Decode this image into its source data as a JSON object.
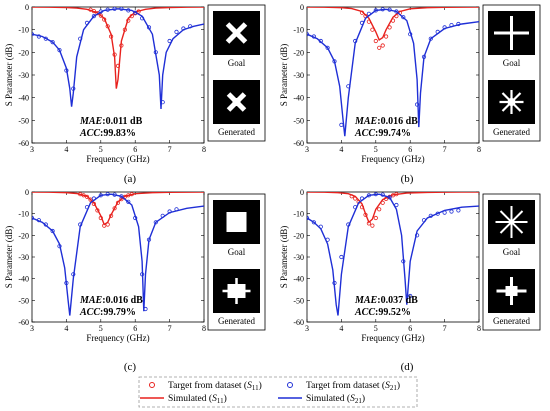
{
  "chart_data": [
    {
      "type": "line",
      "panel": "(a)",
      "xlabel": "Frequency (GHz)",
      "ylabel": "S Parameter (dB)",
      "xlim": [
        3,
        8
      ],
      "ylim": [
        -60,
        0
      ],
      "xticks": [
        3,
        4,
        5,
        6,
        7,
        8
      ],
      "yticks": [
        0,
        -10,
        -20,
        -30,
        -40,
        -50,
        -60
      ],
      "metrics": {
        "mae_label": "MAE",
        "mae_value": ":0.011 dB",
        "acc_label": "ACC",
        "acc_value": ":99.83%"
      },
      "thumbs": {
        "goal": "Goal",
        "generated": "Generated",
        "goal_shape": "x-cross",
        "generated_shape": "x-cross-rough"
      },
      "series": [
        {
          "name": "Simulated (S11)",
          "color": "#e8211d",
          "kind": "line",
          "x": [
            3.0,
            3.5,
            4.0,
            4.3,
            4.6,
            4.9,
            5.1,
            5.3,
            5.4,
            5.45,
            5.5,
            5.6,
            5.8,
            6.0,
            6.3,
            6.6,
            7.0,
            7.5,
            8.0
          ],
          "y": [
            -0.05,
            -0.1,
            -0.25,
            -0.5,
            -1.0,
            -2.5,
            -5.0,
            -12.0,
            -22.0,
            -36.0,
            -32.0,
            -15.0,
            -5.0,
            -2.2,
            -1.0,
            -0.5,
            -0.25,
            -0.1,
            -0.05
          ]
        },
        {
          "name": "Target from dataset (S11)",
          "color": "#e8211d",
          "kind": "marker",
          "x": [
            4.7,
            4.8,
            4.9,
            5.0,
            5.1,
            5.2,
            5.3,
            5.4,
            5.5,
            5.6,
            5.7,
            5.8,
            5.9,
            6.0,
            6.1
          ],
          "y": [
            -1.2,
            -1.8,
            -2.7,
            -3.8,
            -5.5,
            -8.5,
            -13.0,
            -21.0,
            -26.0,
            -17.0,
            -10.0,
            -6.0,
            -4.0,
            -2.8,
            -2.0
          ]
        },
        {
          "name": "Simulated (S21)",
          "color": "#1f2fd6",
          "kind": "line",
          "x": [
            3.0,
            3.3,
            3.6,
            3.8,
            4.0,
            4.1,
            4.15,
            4.2,
            4.3,
            4.5,
            4.8,
            5.1,
            5.5,
            5.9,
            6.2,
            6.5,
            6.7,
            6.75,
            6.8,
            6.9,
            7.1,
            7.4,
            7.7,
            8.0
          ],
          "y": [
            -12.0,
            -13.0,
            -15.5,
            -19.0,
            -27.0,
            -36.0,
            -44.0,
            -38.0,
            -22.0,
            -10.0,
            -4.0,
            -1.5,
            -0.8,
            -1.5,
            -4.0,
            -12.0,
            -30.0,
            -45.0,
            -30.0,
            -20.0,
            -14.0,
            -10.0,
            -8.5,
            -7.5
          ]
        },
        {
          "name": "Target from dataset (S21)",
          "color": "#1f2fd6",
          "kind": "marker",
          "x": [
            3.0,
            3.2,
            3.4,
            3.6,
            3.8,
            4.0,
            4.2,
            4.4,
            4.6,
            4.8,
            5.0,
            5.2,
            5.4,
            5.6,
            5.8,
            6.0,
            6.2,
            6.4,
            6.6,
            6.8,
            7.0,
            7.2,
            7.4,
            7.6
          ],
          "y": [
            -12.0,
            -13.0,
            -14.0,
            -15.5,
            -19.0,
            -28.0,
            -36.0,
            -14.0,
            -7.0,
            -4.0,
            -2.0,
            -1.2,
            -0.8,
            -0.8,
            -1.5,
            -2.5,
            -5.0,
            -9.0,
            -20.0,
            -42.0,
            -15.0,
            -11.0,
            -9.5,
            -8.5
          ]
        }
      ]
    },
    {
      "type": "line",
      "panel": "(b)",
      "xlabel": "Frequency (GHz)",
      "ylabel": "S Parameter (dB)",
      "xlim": [
        3,
        8
      ],
      "ylim": [
        -60,
        0
      ],
      "xticks": [
        3,
        4,
        5,
        6,
        7,
        8
      ],
      "yticks": [
        0,
        -10,
        -20,
        -30,
        -40,
        -50,
        -60
      ],
      "metrics": {
        "mae_label": "MAE",
        "mae_value": ":0.016 dB",
        "acc_label": "ACC",
        "acc_value": ":99.74%"
      },
      "thumbs": {
        "goal": "Goal",
        "generated": "Generated",
        "goal_shape": "plus",
        "generated_shape": "star"
      },
      "series": [
        {
          "name": "Simulated (S11)",
          "color": "#e8211d",
          "kind": "line",
          "x": [
            3.0,
            3.5,
            4.0,
            4.3,
            4.6,
            4.8,
            5.0,
            5.1,
            5.2,
            5.3,
            5.5,
            5.7,
            6.0,
            6.5,
            7.0,
            7.5,
            8.0
          ],
          "y": [
            -0.05,
            -0.1,
            -0.3,
            -0.7,
            -2.0,
            -5.0,
            -11.0,
            -14.5,
            -13.5,
            -10.0,
            -4.5,
            -2.0,
            -0.8,
            -0.3,
            -0.15,
            -0.08,
            -0.05
          ]
        },
        {
          "name": "Target from dataset (S11)",
          "color": "#e8211d",
          "kind": "marker",
          "x": [
            4.6,
            4.7,
            4.8,
            4.9,
            5.0,
            5.1,
            5.2,
            5.3,
            5.4,
            5.5,
            5.6,
            5.7
          ],
          "y": [
            -2.5,
            -4.0,
            -6.5,
            -10.0,
            -15.0,
            -18.0,
            -17.0,
            -13.0,
            -9.0,
            -6.0,
            -4.0,
            -2.5
          ]
        },
        {
          "name": "Simulated (S21)",
          "color": "#1f2fd6",
          "kind": "line",
          "x": [
            3.0,
            3.3,
            3.6,
            3.8,
            3.95,
            4.05,
            4.1,
            4.2,
            4.4,
            4.7,
            5.0,
            5.3,
            5.6,
            5.9,
            6.1,
            6.2,
            6.25,
            6.3,
            6.4,
            6.6,
            7.0,
            7.5,
            8.0
          ],
          "y": [
            -12.0,
            -14.0,
            -18.0,
            -24.0,
            -35.0,
            -50.0,
            -57.0,
            -40.0,
            -16.0,
            -5.0,
            -1.5,
            -1.0,
            -2.0,
            -6.0,
            -16.0,
            -32.0,
            -53.0,
            -38.0,
            -22.0,
            -14.0,
            -9.5,
            -7.5,
            -6.5
          ]
        },
        {
          "name": "Target from dataset (S21)",
          "color": "#1f2fd6",
          "kind": "marker",
          "x": [
            3.0,
            3.2,
            3.4,
            3.6,
            3.8,
            4.0,
            4.2,
            4.4,
            4.6,
            4.8,
            5.0,
            5.2,
            5.4,
            5.6,
            5.8,
            6.0,
            6.2,
            6.4,
            6.6,
            6.8,
            7.0,
            7.2,
            7.4
          ],
          "y": [
            -12.0,
            -13.0,
            -15.0,
            -18.0,
            -24.0,
            -52.0,
            -35.0,
            -15.0,
            -7.0,
            -3.0,
            -1.5,
            -1.0,
            -1.2,
            -2.0,
            -4.5,
            -12.0,
            -43.0,
            -22.0,
            -14.0,
            -11.0,
            -9.0,
            -8.0,
            -7.5
          ]
        }
      ]
    },
    {
      "type": "line",
      "panel": "(c)",
      "xlabel": "Frequency (GHz)",
      "ylabel": "S Parameter (dB)",
      "xlim": [
        3,
        8
      ],
      "ylim": [
        -60,
        0
      ],
      "xticks": [
        3,
        4,
        5,
        6,
        7,
        8
      ],
      "yticks": [
        0,
        -10,
        -20,
        -30,
        -40,
        -50,
        -60
      ],
      "metrics": {
        "mae_label": "MAE",
        "mae_value": ":0.016 dB",
        "acc_label": "ACC",
        "acc_value": ":99.79%"
      },
      "thumbs": {
        "goal": "Goal",
        "generated": "Generated",
        "goal_shape": "square",
        "generated_shape": "square-rough"
      },
      "series": [
        {
          "name": "Simulated (S11)",
          "color": "#e8211d",
          "kind": "line",
          "x": [
            3.0,
            3.5,
            4.0,
            4.3,
            4.6,
            4.8,
            5.0,
            5.1,
            5.2,
            5.3,
            5.5,
            5.7,
            6.0,
            6.5,
            7.0,
            7.5,
            8.0
          ],
          "y": [
            -0.05,
            -0.1,
            -0.3,
            -0.7,
            -2.0,
            -5.0,
            -11.0,
            -15.0,
            -14.0,
            -10.5,
            -4.5,
            -2.0,
            -0.8,
            -0.3,
            -0.15,
            -0.08,
            -0.05
          ]
        },
        {
          "name": "Target from dataset (S11)",
          "color": "#e8211d",
          "kind": "marker",
          "x": [
            4.4,
            4.5,
            4.6,
            4.7,
            4.8,
            4.9,
            5.0,
            5.1,
            5.2,
            5.3,
            5.4,
            5.5,
            5.6,
            5.7,
            5.8,
            5.9
          ],
          "y": [
            -1.0,
            -1.5,
            -2.2,
            -3.5,
            -5.5,
            -8.5,
            -12.0,
            -15.5,
            -15.0,
            -11.0,
            -7.5,
            -5.0,
            -3.3,
            -2.2,
            -1.5,
            -1.0
          ]
        },
        {
          "name": "Simulated (S21)",
          "color": "#1f2fd6",
          "kind": "line",
          "x": [
            3.0,
            3.3,
            3.6,
            3.8,
            3.95,
            4.05,
            4.1,
            4.2,
            4.4,
            4.7,
            5.0,
            5.3,
            5.6,
            5.9,
            6.1,
            6.2,
            6.25,
            6.3,
            6.4,
            6.6,
            7.0,
            7.5,
            8.0
          ],
          "y": [
            -12.0,
            -14.0,
            -18.0,
            -24.0,
            -35.0,
            -50.0,
            -57.0,
            -40.0,
            -16.0,
            -5.0,
            -1.5,
            -1.0,
            -2.0,
            -6.0,
            -16.0,
            -32.0,
            -55.0,
            -38.0,
            -22.0,
            -14.0,
            -9.5,
            -7.5,
            -6.5
          ]
        },
        {
          "name": "Target from dataset (S21)",
          "color": "#1f2fd6",
          "kind": "marker",
          "x": [
            3.0,
            3.2,
            3.4,
            3.6,
            3.8,
            4.0,
            4.2,
            4.4,
            4.6,
            4.8,
            5.0,
            5.2,
            5.4,
            5.6,
            5.8,
            6.0,
            6.2,
            6.3,
            6.4,
            6.6,
            6.8,
            7.0,
            7.2
          ],
          "y": [
            -12.0,
            -13.0,
            -15.0,
            -18.0,
            -25.0,
            -42.0,
            -38.0,
            -15.0,
            -7.0,
            -3.0,
            -1.5,
            -1.0,
            -1.2,
            -2.0,
            -4.5,
            -12.0,
            -38.0,
            -54.0,
            -22.0,
            -14.0,
            -11.0,
            -9.0,
            -8.0
          ]
        }
      ]
    },
    {
      "type": "line",
      "panel": "(d)",
      "xlabel": "Frequency (GHz)",
      "ylabel": "S Parameter (dB)",
      "xlim": [
        3,
        8
      ],
      "ylim": [
        -60,
        0
      ],
      "xticks": [
        3,
        4,
        5,
        6,
        7,
        8
      ],
      "yticks": [
        0,
        -10,
        -20,
        -30,
        -40,
        -50,
        -60
      ],
      "metrics": {
        "mae_label": "MAE",
        "mae_value": ":0.037 dB",
        "acc_label": "ACC",
        "acc_value": ":99.52%"
      },
      "thumbs": {
        "goal": "Goal",
        "generated": "Generated",
        "goal_shape": "asterisk",
        "generated_shape": "cross-rough"
      },
      "series": [
        {
          "name": "Simulated (S11)",
          "color": "#e8211d",
          "kind": "line",
          "x": [
            3.0,
            3.5,
            3.9,
            4.2,
            4.4,
            4.6,
            4.7,
            4.8,
            4.9,
            5.0,
            5.2,
            5.5,
            5.9,
            6.5,
            7.0,
            7.5,
            8.0
          ],
          "y": [
            -0.05,
            -0.1,
            -0.3,
            -0.8,
            -2.0,
            -5.5,
            -10.0,
            -14.0,
            -12.5,
            -8.0,
            -3.5,
            -1.3,
            -0.5,
            -0.2,
            -0.1,
            -0.06,
            -0.05
          ]
        },
        {
          "name": "Target from dataset (S11)",
          "color": "#e8211d",
          "kind": "marker",
          "x": [
            4.3,
            4.4,
            4.5,
            4.6,
            4.7,
            4.8,
            4.9,
            5.0,
            5.1,
            5.2,
            5.3,
            5.4,
            5.5,
            5.6
          ],
          "y": [
            -2.0,
            -3.0,
            -4.5,
            -7.0,
            -10.5,
            -14.5,
            -15.5,
            -12.0,
            -8.0,
            -5.0,
            -3.2,
            -2.2,
            -1.5,
            -1.0
          ]
        },
        {
          "name": "Simulated (S21)",
          "color": "#1f2fd6",
          "kind": "line",
          "x": [
            3.0,
            3.2,
            3.4,
            3.6,
            3.75,
            3.85,
            3.9,
            4.0,
            4.2,
            4.5,
            4.8,
            5.1,
            5.4,
            5.6,
            5.75,
            5.85,
            5.9,
            6.0,
            6.2,
            6.5,
            7.0,
            7.5,
            8.0
          ],
          "y": [
            -12.0,
            -14.0,
            -17.0,
            -24.0,
            -36.0,
            -52.0,
            -57.0,
            -38.0,
            -16.0,
            -5.0,
            -1.5,
            -1.0,
            -2.5,
            -8.0,
            -20.0,
            -40.0,
            -52.0,
            -32.0,
            -18.0,
            -12.0,
            -8.5,
            -7.0,
            -6.5
          ]
        },
        {
          "name": "Target from dataset (S21)",
          "color": "#1f2fd6",
          "kind": "marker",
          "x": [
            3.0,
            3.2,
            3.4,
            3.6,
            3.8,
            4.0,
            4.2,
            4.4,
            4.6,
            4.8,
            5.0,
            5.2,
            5.4,
            5.6,
            5.8,
            6.0,
            6.2,
            6.4,
            6.6,
            6.8,
            7.0,
            7.2,
            7.4
          ],
          "y": [
            -12.0,
            -14.0,
            -16.0,
            -22.0,
            -42.0,
            -30.0,
            -15.0,
            -7.0,
            -3.0,
            -1.5,
            -1.0,
            -1.2,
            -2.5,
            -6.0,
            -32.0,
            -48.0,
            -20.0,
            -13.0,
            -11.0,
            -10.0,
            -9.5,
            -9.0,
            -8.5
          ]
        }
      ]
    }
  ],
  "legend": {
    "items": [
      {
        "label": "Target from dataset (",
        "sub": "11",
        "kind": "marker",
        "color": "#e8211d"
      },
      {
        "label": "Target from dataset (",
        "sub": "21",
        "kind": "marker",
        "color": "#1f2fd6"
      },
      {
        "label": "Simulated (",
        "sub": "11",
        "kind": "line",
        "color": "#e8211d"
      },
      {
        "label": "Simulated (",
        "sub": "21",
        "kind": "line",
        "color": "#1f2fd6"
      }
    ],
    "s_letter": "S",
    "close": ")"
  }
}
